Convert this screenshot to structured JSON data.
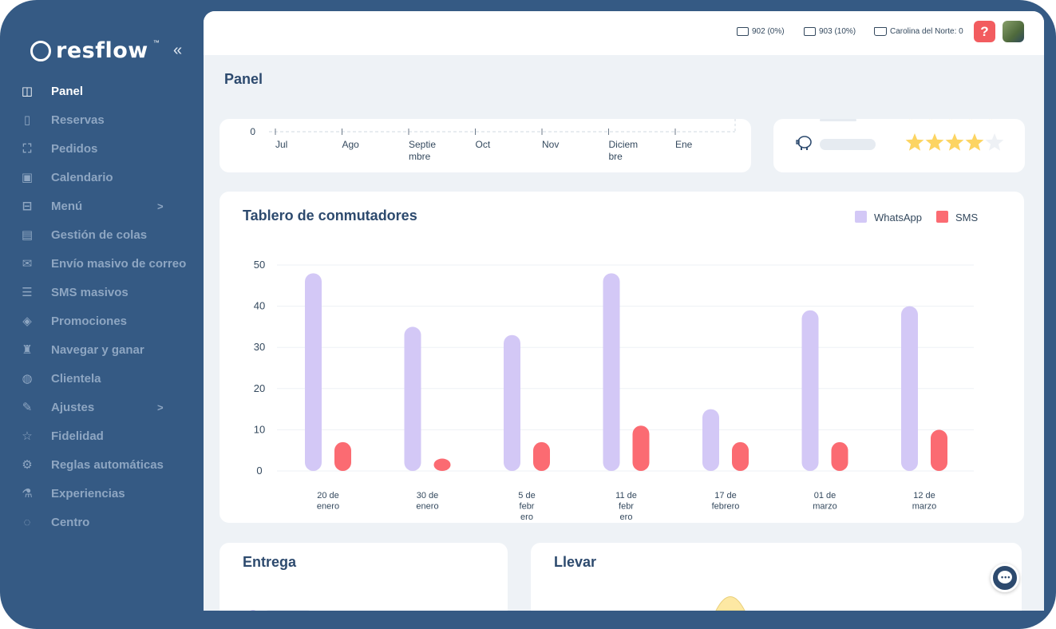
{
  "brand": {
    "name": "resflow",
    "tm": "™"
  },
  "sidebar": {
    "items": [
      {
        "label": "Panel",
        "icon": "layout-icon",
        "glyph": "◫",
        "active": true
      },
      {
        "label": "Reservas",
        "icon": "bookmark-icon",
        "glyph": "▯"
      },
      {
        "label": "Pedidos",
        "icon": "scan-icon",
        "glyph": "⛶"
      },
      {
        "label": "Calendario",
        "icon": "calendar-icon",
        "glyph": "▣"
      },
      {
        "label": "Menú",
        "icon": "book-open-icon",
        "glyph": "⊟",
        "arrow": ">"
      },
      {
        "label": "Gestión de colas",
        "icon": "id-card-icon",
        "glyph": "▤"
      },
      {
        "label": "Envío masivo de correo",
        "icon": "envelope-open-icon",
        "glyph": "✉"
      },
      {
        "label": "SMS masivos",
        "icon": "message-icon",
        "glyph": "☰"
      },
      {
        "label": "Promociones",
        "icon": "tag-icon",
        "glyph": "◈"
      },
      {
        "label": "Navegar y ganar",
        "icon": "trophy-icon",
        "glyph": "♜"
      },
      {
        "label": "Clientela",
        "icon": "leaf-icon",
        "glyph": "◍"
      },
      {
        "label": "Ajustes",
        "icon": "wrench-icon",
        "glyph": "✎",
        "arrow": ">"
      },
      {
        "label": "Fidelidad",
        "icon": "star-outline-icon",
        "glyph": "☆"
      },
      {
        "label": "Reglas automáticas",
        "icon": "robot-arm-icon",
        "glyph": "⚙"
      },
      {
        "label": "Experiencias",
        "icon": "flask-icon",
        "glyph": "⚗"
      },
      {
        "label": "Centro",
        "icon": "lightbulb-icon",
        "glyph": "◌"
      }
    ]
  },
  "topbar": {
    "stat1": "902 (0%)",
    "stat2": "903 (10%)",
    "location": "Carolina del Norte: 0",
    "help": "?"
  },
  "page": {
    "title": "Panel"
  },
  "top_chart": {
    "zero_label": "0",
    "months": [
      [
        "Jul"
      ],
      [
        "Ago"
      ],
      [
        "Septie",
        "mbre"
      ],
      [
        "Oct"
      ],
      [
        "Nov"
      ],
      [
        "Diciem",
        "bre"
      ],
      [
        "Ene"
      ]
    ]
  },
  "rating": {
    "stars_filled": 4,
    "stars_total": 5
  },
  "switch_chart": {
    "title": "Tablero de conmutadores",
    "legend": [
      {
        "name": "WhatsApp",
        "color": "#d3c8f6"
      },
      {
        "name": "SMS",
        "color": "#fb6b72"
      }
    ]
  },
  "chart_data": {
    "type": "bar",
    "title": "Tablero de conmutadores",
    "categories": [
      [
        "20 de",
        "enero"
      ],
      [
        "30 de",
        "enero"
      ],
      [
        "5 de",
        "febr",
        "ero"
      ],
      [
        "11 de",
        "febr",
        "ero"
      ],
      [
        "17 de",
        "febrero"
      ],
      [
        "01 de",
        "marzo"
      ],
      [
        "12 de",
        "marzo"
      ]
    ],
    "series": [
      {
        "name": "WhatsApp",
        "color": "#d3c8f6",
        "values": [
          48,
          35,
          33,
          48,
          15,
          39,
          40
        ]
      },
      {
        "name": "SMS",
        "color": "#fb6b72",
        "values": [
          7,
          3,
          7,
          11,
          7,
          7,
          10
        ]
      }
    ],
    "yticks": [
      0,
      10,
      20,
      30,
      40,
      50
    ],
    "ylim": [
      0,
      50
    ],
    "grid": true,
    "legend_position": "top-right"
  },
  "delivery": {
    "title": "Entrega"
  },
  "takeaway": {
    "title": "Llevar"
  }
}
